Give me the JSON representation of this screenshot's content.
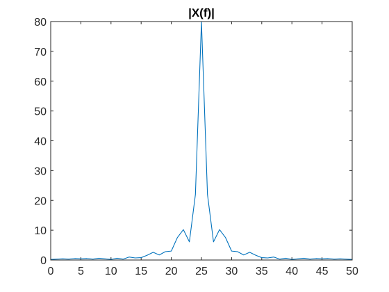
{
  "chart_data": {
    "type": "line",
    "title": "|X(f)|",
    "xlabel": "",
    "ylabel": "",
    "xlim": [
      0,
      50
    ],
    "ylim": [
      0,
      80
    ],
    "xticks": [
      0,
      5,
      10,
      15,
      20,
      25,
      30,
      35,
      40,
      45,
      50
    ],
    "yticks": [
      0,
      10,
      20,
      30,
      40,
      50,
      60,
      70,
      80
    ],
    "grid": false,
    "legend": "none",
    "box": true,
    "line_color": "#0072BD",
    "x": [
      0,
      1,
      2,
      3,
      4,
      5,
      6,
      7,
      8,
      9,
      10,
      11,
      12,
      13,
      14,
      15,
      16,
      17,
      18,
      19,
      20,
      21,
      22,
      23,
      24,
      25,
      26,
      27,
      28,
      29,
      30,
      31,
      32,
      33,
      34,
      35,
      36,
      37,
      38,
      39,
      40,
      41,
      42,
      43,
      44,
      45,
      46,
      47,
      48,
      49,
      50
    ],
    "y": [
      0.2,
      0.3,
      0.4,
      0.3,
      0.5,
      0.4,
      0.5,
      0.3,
      0.6,
      0.4,
      0.2,
      0.6,
      0.3,
      1.0,
      0.7,
      0.8,
      1.6,
      2.6,
      1.7,
      2.8,
      3.0,
      7.5,
      10.2,
      6.1,
      22.0,
      80.0,
      22.0,
      6.1,
      10.2,
      7.5,
      3.0,
      2.8,
      1.7,
      2.6,
      1.6,
      0.8,
      0.7,
      1.0,
      0.3,
      0.6,
      0.2,
      0.4,
      0.6,
      0.3,
      0.5,
      0.4,
      0.5,
      0.3,
      0.4,
      0.3,
      0.2
    ]
  }
}
